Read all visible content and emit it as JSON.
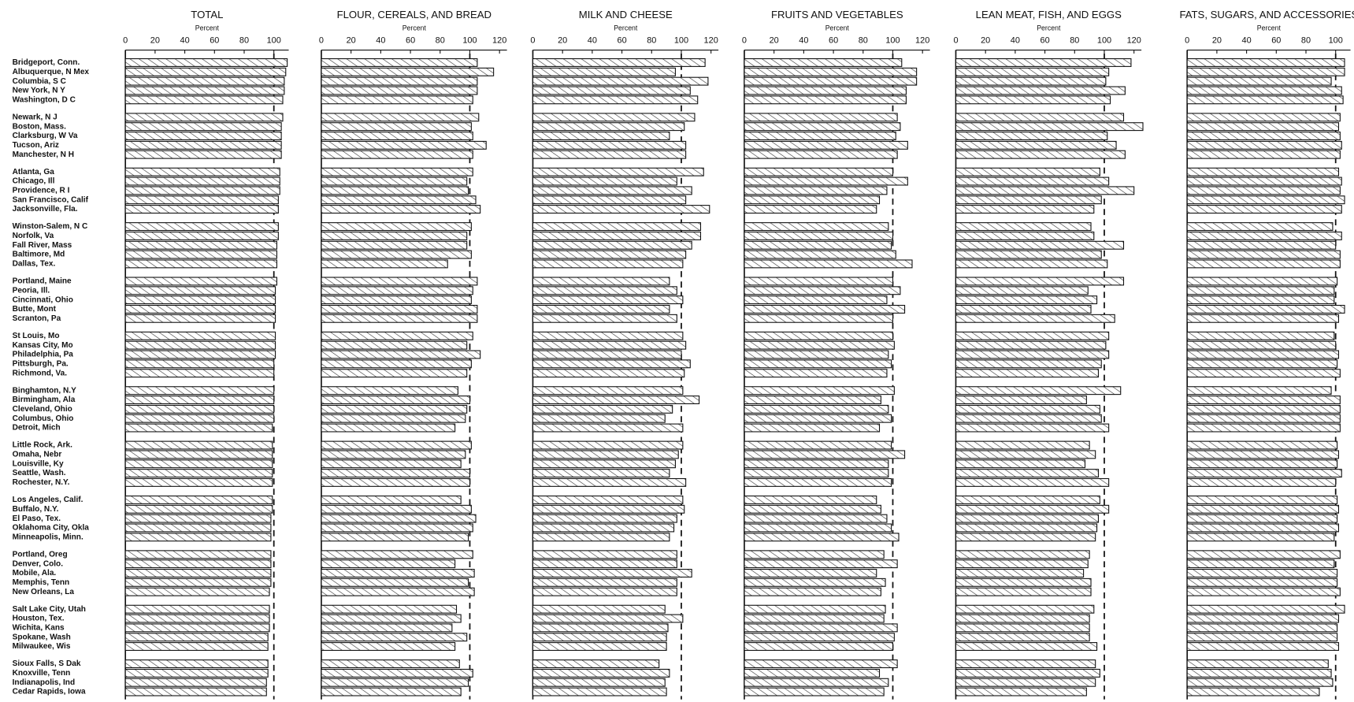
{
  "chart_data": {
    "type": "bar",
    "orientation": "horizontal",
    "reference_line": 100,
    "categories": [
      "Bridgeport, Conn.",
      "Albuquerque, N Mex",
      "Columbia, S C",
      "New York, N Y",
      "Washington, D C",
      "Newark, N J",
      "Boston, Mass.",
      "Clarksburg, W Va",
      "Tucson, Ariz",
      "Manchester, N H",
      "Atlanta, Ga",
      "Chicago, Ill",
      "Providence, R I",
      "San Francisco, Calif",
      "Jacksonville, Fla.",
      "Winston-Salem, N C",
      "Norfolk, Va",
      "Fall River, Mass",
      "Baltimore, Md",
      "Dallas, Tex.",
      "Portland, Maine",
      "Peoria, Ill.",
      "Cincinnati, Ohio",
      "Butte, Mont",
      "Scranton, Pa",
      "St Louis, Mo",
      "Kansas City, Mo",
      "Philadelphia, Pa",
      "Pittsburgh, Pa.",
      "Richmond, Va.",
      "Binghamton, N.Y",
      "Birmingham, Ala",
      "Cleveland, Ohio",
      "Columbus, Ohio",
      "Detroit, Mich",
      "Little Rock, Ark.",
      "Omaha, Nebr",
      "Louisville, Ky",
      "Seattle, Wash.",
      "Rochester, N.Y.",
      "Los Angeles, Calif.",
      "Buffalo, N.Y.",
      "El Paso, Tex.",
      "Oklahoma City, Okla",
      "Minneapolis, Minn.",
      "Portland, Oreg",
      "Denver, Colo.",
      "Mobile, Ala.",
      "Memphis, Tenn",
      "New Orleans, La",
      "Salt Lake City, Utah",
      "Houston, Tex.",
      "Wichita, Kans",
      "Spokane, Wash",
      "Milwaukee, Wis",
      "Sioux Falls, S Dak",
      "Knoxville, Tenn",
      "Indianapolis, Ind",
      "Cedar Rapids, Iowa"
    ],
    "panels": [
      {
        "title": "TOTAL",
        "axis_label": "Percent",
        "xlim": [
          0,
          110
        ],
        "xticks": [
          0,
          20,
          40,
          60,
          80,
          100
        ],
        "values": [
          109,
          108,
          107,
          107,
          106,
          106,
          105,
          105,
          105,
          105,
          104,
          104,
          104,
          103,
          103,
          103,
          103,
          102,
          102,
          102,
          102,
          101,
          101,
          101,
          101,
          101,
          101,
          101,
          100,
          100,
          100,
          100,
          100,
          100,
          99,
          99,
          99,
          99,
          99,
          99,
          99,
          99,
          98,
          98,
          98,
          98,
          98,
          98,
          98,
          97,
          97,
          97,
          97,
          96,
          96,
          96,
          96,
          95,
          95
        ]
      },
      {
        "title": "FLOUR, CEREALS, AND BREAD",
        "axis_label": "Percent",
        "xlim": [
          0,
          125
        ],
        "xticks": [
          0,
          20,
          40,
          60,
          80,
          100,
          120
        ],
        "values": [
          105,
          116,
          105,
          105,
          102,
          106,
          101,
          102,
          111,
          102,
          102,
          98,
          99,
          104,
          107,
          101,
          98,
          98,
          101,
          85,
          105,
          102,
          101,
          105,
          105,
          102,
          98,
          107,
          101,
          98,
          92,
          100,
          98,
          97,
          90,
          101,
          97,
          94,
          100,
          100,
          94,
          101,
          104,
          102,
          99,
          102,
          90,
          103,
          99,
          103,
          91,
          94,
          88,
          98,
          90,
          93,
          102,
          99,
          94
        ]
      },
      {
        "title": "MILK AND CHEESE",
        "axis_label": "Percent",
        "xlim": [
          0,
          125
        ],
        "xticks": [
          0,
          20,
          40,
          60,
          80,
          100,
          120
        ],
        "values": [
          116,
          96,
          118,
          106,
          111,
          109,
          102,
          92,
          103,
          103,
          115,
          97,
          107,
          103,
          119,
          113,
          113,
          107,
          103,
          101,
          92,
          97,
          101,
          92,
          97,
          101,
          103,
          100,
          106,
          102,
          101,
          112,
          94,
          89,
          101,
          101,
          98,
          96,
          92,
          103,
          101,
          102,
          97,
          95,
          92,
          97,
          97,
          107,
          97,
          97,
          89,
          101,
          91,
          90,
          90,
          85,
          92,
          89,
          90
        ]
      },
      {
        "title": "FRUITS AND VEGETABLES",
        "axis_label": "Percent",
        "xlim": [
          0,
          125
        ],
        "xticks": [
          0,
          20,
          40,
          60,
          80,
          100,
          120
        ],
        "values": [
          106,
          116,
          116,
          109,
          109,
          103,
          105,
          102,
          110,
          103,
          100,
          110,
          96,
          91,
          89,
          97,
          100,
          99,
          102,
          113,
          100,
          105,
          96,
          108,
          100,
          100,
          101,
          97,
          99,
          96,
          101,
          92,
          97,
          99,
          91,
          99,
          108,
          97,
          97,
          99,
          89,
          92,
          96,
          99,
          104,
          94,
          103,
          89,
          95,
          92,
          95,
          94,
          103,
          101,
          100,
          103,
          91,
          97,
          94
        ]
      },
      {
        "title": "LEAN MEAT, FISH, AND EGGS",
        "axis_label": "Percent",
        "xlim": [
          0,
          125
        ],
        "xticks": [
          0,
          20,
          40,
          60,
          80,
          100,
          120
        ],
        "values": [
          118,
          103,
          101,
          114,
          104,
          113,
          126,
          102,
          108,
          114,
          97,
          103,
          120,
          98,
          93,
          91,
          93,
          113,
          98,
          102,
          113,
          89,
          95,
          91,
          107,
          103,
          101,
          103,
          98,
          96,
          111,
          88,
          97,
          98,
          103,
          90,
          94,
          87,
          96,
          103,
          97,
          103,
          96,
          95,
          94,
          90,
          89,
          86,
          91,
          91,
          93,
          90,
          90,
          90,
          95,
          94,
          97,
          94,
          88
        ]
      },
      {
        "title": "FATS, SUGARS, AND ACCESSORIES",
        "axis_label": "Percent",
        "xlim": [
          0,
          110
        ],
        "xticks": [
          0,
          20,
          40,
          60,
          80,
          100
        ],
        "values": [
          106,
          106,
          97,
          104,
          105,
          103,
          102,
          103,
          104,
          103,
          102,
          104,
          103,
          106,
          104,
          98,
          104,
          100,
          103,
          103,
          101,
          99,
          99,
          106,
          102,
          99,
          100,
          102,
          101,
          103,
          97,
          103,
          103,
          103,
          103,
          101,
          102,
          101,
          104,
          100,
          101,
          102,
          101,
          102,
          99,
          103,
          99,
          101,
          101,
          103,
          106,
          102,
          101,
          101,
          102,
          95,
          97,
          98,
          89
        ]
      }
    ]
  }
}
